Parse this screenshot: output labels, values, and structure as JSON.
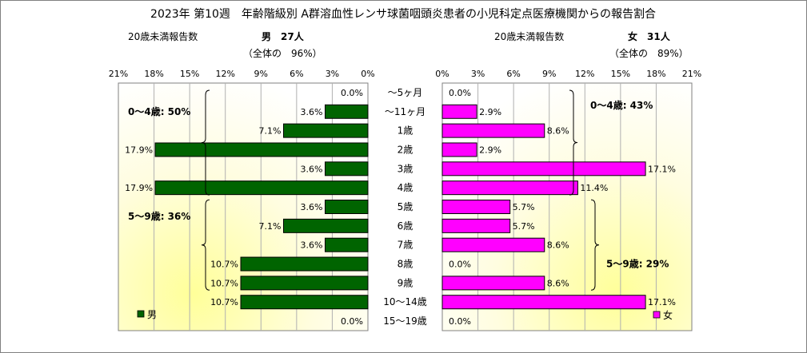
{
  "chart_data": {
    "type": "bar",
    "title": "2023年 第10週　年齢階級別 A群溶血性レンサ球菌咽頭炎患者の小児科定点医療機関からの報告割合",
    "categories": [
      "～5ヶ月",
      "～11ヶ月",
      "1歳",
      "2歳",
      "3歳",
      "4歳",
      "5歳",
      "6歳",
      "7歳",
      "8歳",
      "9歳",
      "10～14歳",
      "15～19歳"
    ],
    "xlim": [
      0,
      21
    ],
    "x_ticks": [
      "0%",
      "3%",
      "6%",
      "9%",
      "12%",
      "15%",
      "18%",
      "21%"
    ],
    "x_tick_values": [
      0,
      3,
      6,
      9,
      12,
      15,
      18,
      21
    ],
    "series": [
      {
        "name": "男",
        "color": "#006400",
        "header_left": "20歳未満報告数",
        "header_right": "男　27人",
        "subheader": "（全体の　96%）",
        "values": [
          0.0,
          3.6,
          7.1,
          17.9,
          3.6,
          17.9,
          3.6,
          7.1,
          3.6,
          10.7,
          10.7,
          10.7,
          0.0
        ],
        "labels": [
          "0.0%",
          "3.6%",
          "7.1%",
          "17.9%",
          "3.6%",
          "17.9%",
          "3.6%",
          "7.1%",
          "3.6%",
          "10.7%",
          "10.7%",
          "10.7%",
          "0.0%"
        ],
        "annotations": [
          {
            "text": "0～4歳: 50%",
            "from": 0,
            "to": 5
          },
          {
            "text": "5～9歳: 36%",
            "from": 6,
            "to": 10
          }
        ]
      },
      {
        "name": "女",
        "color": "#ff00ff",
        "header_left": "20歳未満報告数",
        "header_right": "女　31人",
        "subheader": "（全体の　89%）",
        "values": [
          0.0,
          2.9,
          8.6,
          2.9,
          17.1,
          11.4,
          5.7,
          5.7,
          8.6,
          0.0,
          8.6,
          17.1,
          0.0
        ],
        "labels": [
          "0.0%",
          "2.9%",
          "8.6%",
          "2.9%",
          "17.1%",
          "11.4%",
          "5.7%",
          "5.7%",
          "8.6%",
          "0.0%",
          "8.6%",
          "17.1%",
          "0.0%"
        ],
        "annotations": [
          {
            "text": "0～4歳: 43%",
            "from": 0,
            "to": 5
          },
          {
            "text": "5～9歳: 29%",
            "from": 6,
            "to": 10
          }
        ]
      }
    ],
    "legend": "bottom-corners",
    "grid": "vertical"
  }
}
